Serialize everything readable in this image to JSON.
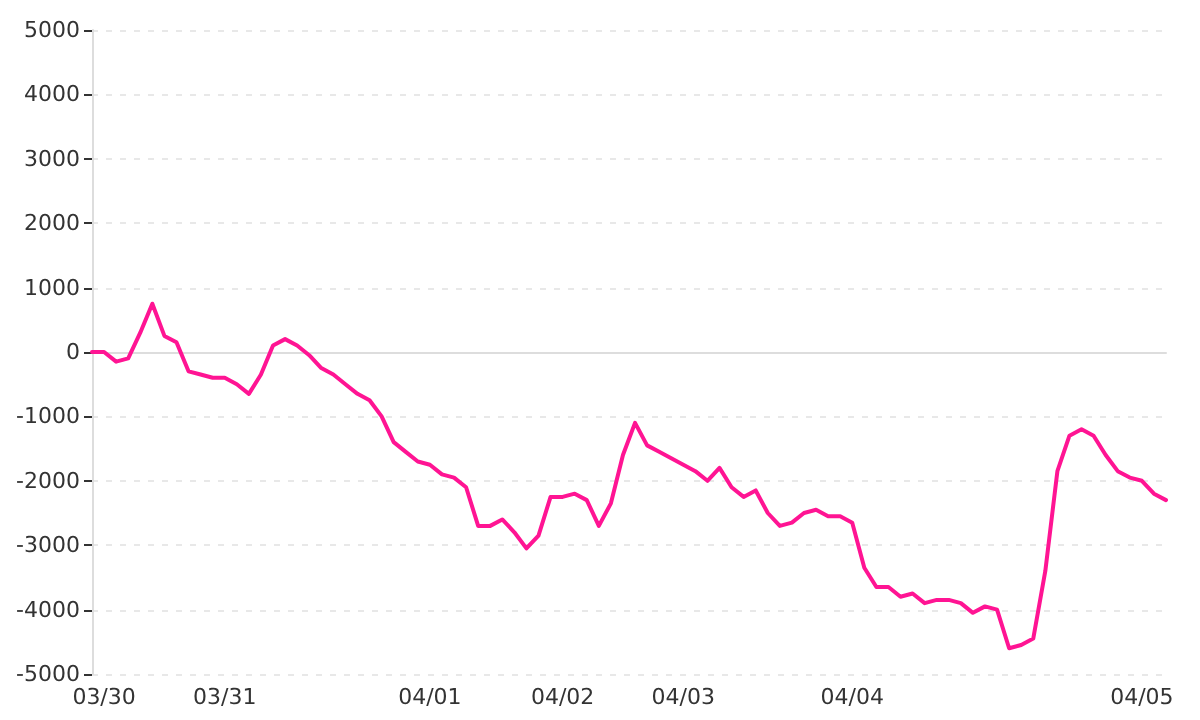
{
  "chart_data": {
    "type": "line",
    "categories": [
      null,
      "03/30",
      null,
      null,
      null,
      null,
      null,
      null,
      null,
      null,
      null,
      "03/31",
      null,
      null,
      null,
      null,
      null,
      null,
      null,
      null,
      null,
      null,
      null,
      null,
      null,
      null,
      null,
      null,
      "04/01",
      null,
      null,
      null,
      null,
      null,
      null,
      null,
      null,
      null,
      null,
      "04/02",
      null,
      null,
      null,
      null,
      null,
      null,
      null,
      null,
      null,
      "04/03",
      null,
      null,
      null,
      null,
      null,
      null,
      null,
      null,
      null,
      null,
      null,
      null,
      null,
      "04/04",
      null,
      null,
      null,
      null,
      null,
      null,
      null,
      null,
      null,
      null,
      null,
      null,
      null,
      null,
      null,
      null,
      null,
      null,
      null,
      null,
      null,
      null,
      null,
      "04/05",
      null,
      null
    ],
    "series": [
      {
        "color": "#ff1493",
        "values": [
          0,
          0,
          -150,
          -100,
          300,
          750,
          250,
          150,
          -300,
          -350,
          -400,
          -400,
          -500,
          -650,
          -350,
          100,
          200,
          100,
          -50,
          -250,
          -350,
          -500,
          -650,
          -750,
          -1000,
          -1400,
          -1550,
          -1700,
          -1750,
          -1900,
          -1950,
          -2100,
          -2700,
          -2700,
          -2600,
          -2800,
          -3050,
          -2850,
          -2250,
          -2250,
          -2200,
          -2300,
          -2700,
          -2350,
          -1600,
          -1100,
          -1450,
          -1550,
          -1650,
          -1750,
          -1850,
          -2000,
          -1800,
          -2100,
          -2250,
          -2150,
          -2500,
          -2700,
          -2650,
          -2500,
          -2450,
          -2550,
          -2550,
          -2650,
          -3350,
          -3650,
          -3650,
          -3800,
          -3750,
          -3900,
          -3850,
          -3850,
          -3900,
          -4050,
          -3950,
          -4000,
          -4600,
          -4550,
          -4450,
          -3400,
          -1850,
          -1300,
          -1200,
          -1300,
          -1600,
          -1850,
          -1950,
          -2000,
          -2200,
          -2300
        ]
      }
    ],
    "ylim": [
      -5000,
      5000
    ],
    "yticks": [
      -5000,
      -4000,
      -3000,
      -2000,
      -1000,
      0,
      1000,
      2000,
      3000,
      4000,
      5000
    ],
    "grid": "y",
    "marker": "none",
    "line_style": "solid"
  }
}
